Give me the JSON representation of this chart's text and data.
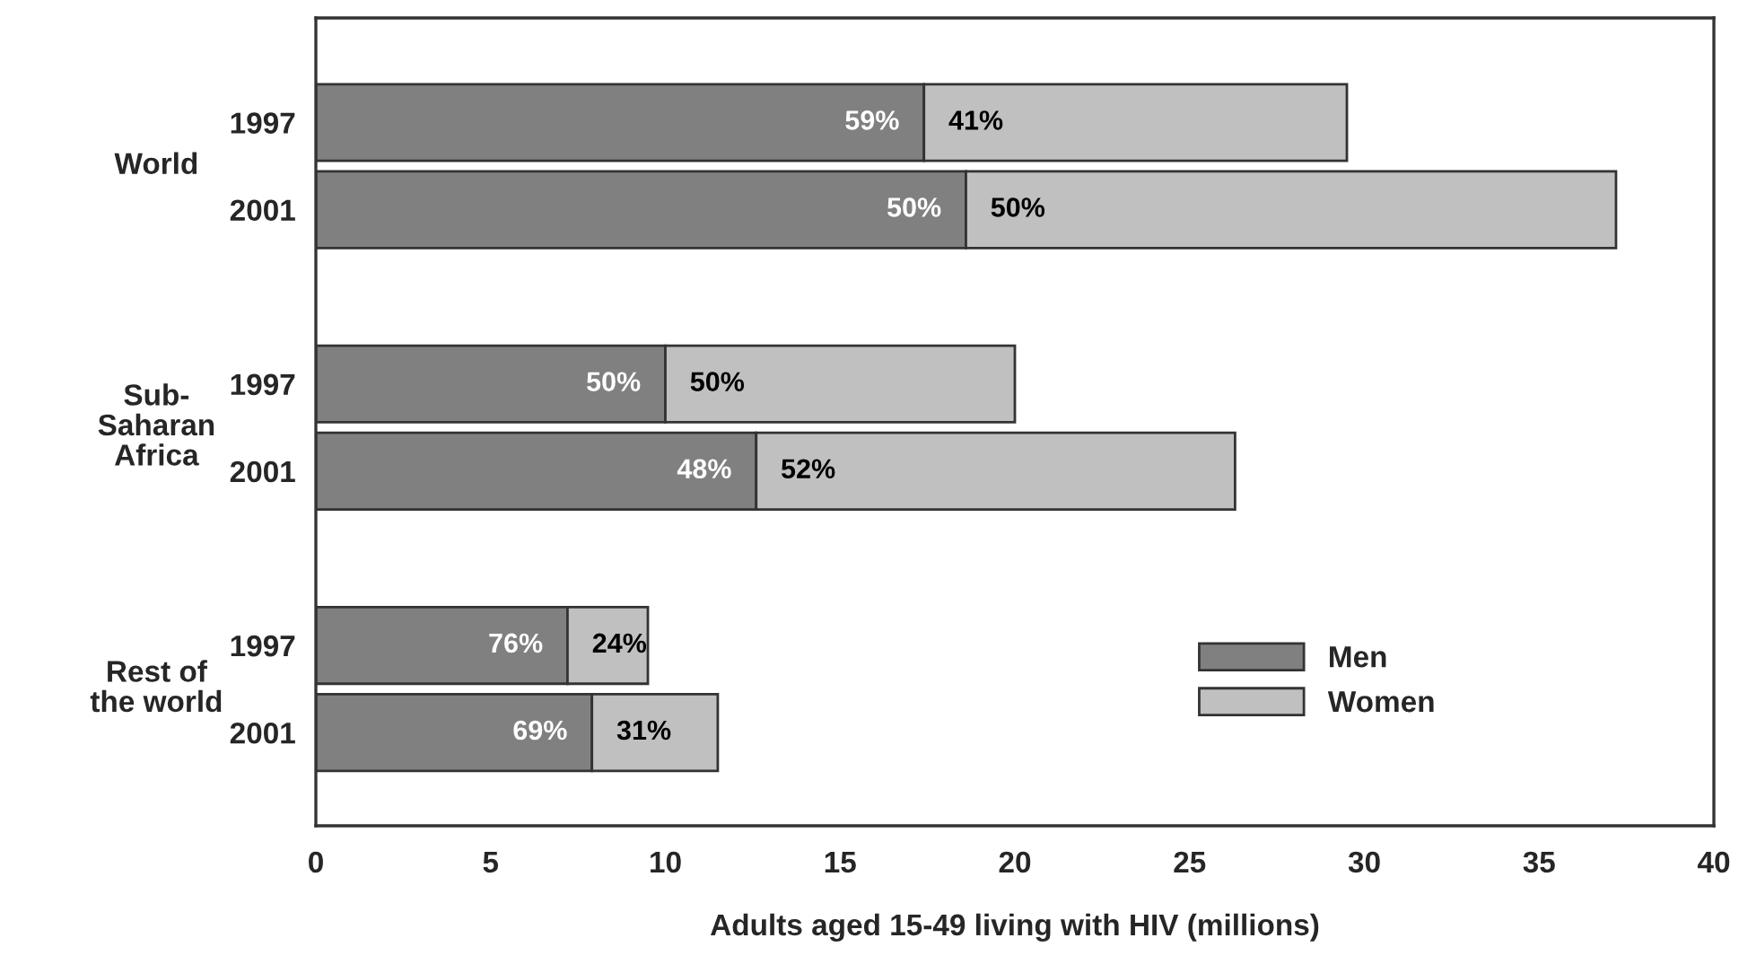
{
  "chart_data": {
    "type": "bar",
    "orientation": "horizontal",
    "stacked": true,
    "xlabel": "Adults aged 15-49 living with HIV (millions)",
    "categories": [
      "1997",
      "2001",
      null,
      "1997",
      "2001",
      null,
      "1997",
      "2001"
    ],
    "series": [
      {
        "name": "Men",
        "color": "#808080",
        "values": [
          17.4,
          18.6,
          null,
          10.0,
          12.6,
          null,
          7.2,
          7.9
        ]
      },
      {
        "name": "Women",
        "color": "#c0c0c0",
        "values": [
          12.1,
          18.6,
          null,
          10.0,
          13.7,
          null,
          2.3,
          3.6
        ]
      }
    ],
    "annotations": [
      "World",
      "Sub-\nSaharan\nAfrica",
      "Rest of\nthe world",
      "59%",
      "41%",
      "50%",
      "50%",
      "50%",
      "50%",
      "48%",
      "52%",
      "76%",
      "24%",
      "69%",
      "31%"
    ],
    "xlim": [
      0,
      40
    ],
    "xticks": [
      0,
      5,
      10,
      15,
      20,
      25,
      30,
      35,
      40
    ],
    "legend": "bottom right",
    "grid": false
  }
}
